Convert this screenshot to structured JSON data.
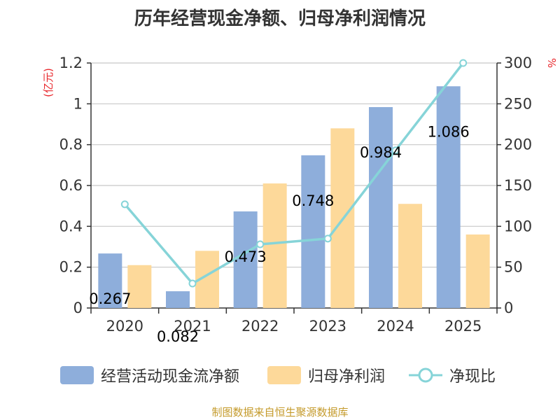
{
  "chart_data": {
    "type": "bar",
    "title": "历年经营现金净额、归母净利润情况",
    "categories": [
      "2020",
      "2021",
      "2022",
      "2023",
      "2024",
      "2025"
    ],
    "series": [
      {
        "name": "经营活动现金流净额",
        "kind": "bar",
        "axis": "left",
        "color": "#8eaedb",
        "values": [
          0.267,
          0.082,
          0.473,
          0.748,
          0.984,
          1.086
        ],
        "labels": [
          "0.267",
          "0.082",
          "0.473",
          "0.748",
          "0.984",
          "1.086"
        ]
      },
      {
        "name": "归母净利润",
        "kind": "bar",
        "axis": "left",
        "color": "#fdd99a",
        "values": [
          0.21,
          0.28,
          0.61,
          0.88,
          0.51,
          0.36
        ]
      },
      {
        "name": "净现比",
        "kind": "line",
        "axis": "right",
        "color": "#86d4d8",
        "values": [
          127,
          30,
          78,
          85,
          193,
          300
        ]
      }
    ],
    "y_left": {
      "unit": "(亿元)",
      "min": 0,
      "max": 1.2,
      "ticks": [
        0,
        0.2,
        0.4,
        0.6,
        0.8,
        1,
        1.2
      ],
      "tick_labels": [
        "0",
        "0.2",
        "0.4",
        "0.6",
        "0.8",
        "1",
        "1.2"
      ]
    },
    "y_right": {
      "unit": "%",
      "min": 0,
      "max": 300,
      "ticks": [
        0,
        50,
        100,
        150,
        200,
        250,
        300
      ],
      "tick_labels": [
        "0",
        "50",
        "100",
        "150",
        "200",
        "250",
        "300"
      ]
    },
    "grid": true,
    "legend_position": "bottom"
  },
  "colors": {
    "unit_red": "#e8272c",
    "grid": "#c8c8c8",
    "axis": "#333333",
    "source": "#c49a2a"
  },
  "source_note": "制图数据来自恒生聚源数据库"
}
